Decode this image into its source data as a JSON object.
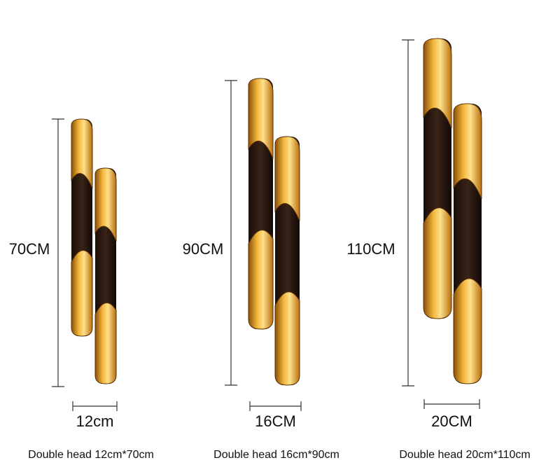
{
  "products": [
    {
      "height_label": "70CM",
      "width_label": "12cm",
      "caption": "Double head 12cm*70cm"
    },
    {
      "height_label": "90CM",
      "width_label": "16CM",
      "caption": "Double head 16cm*90cm"
    },
    {
      "height_label": "110CM",
      "width_label": "20CM",
      "caption": "Double head 20cm*110cm"
    }
  ]
}
